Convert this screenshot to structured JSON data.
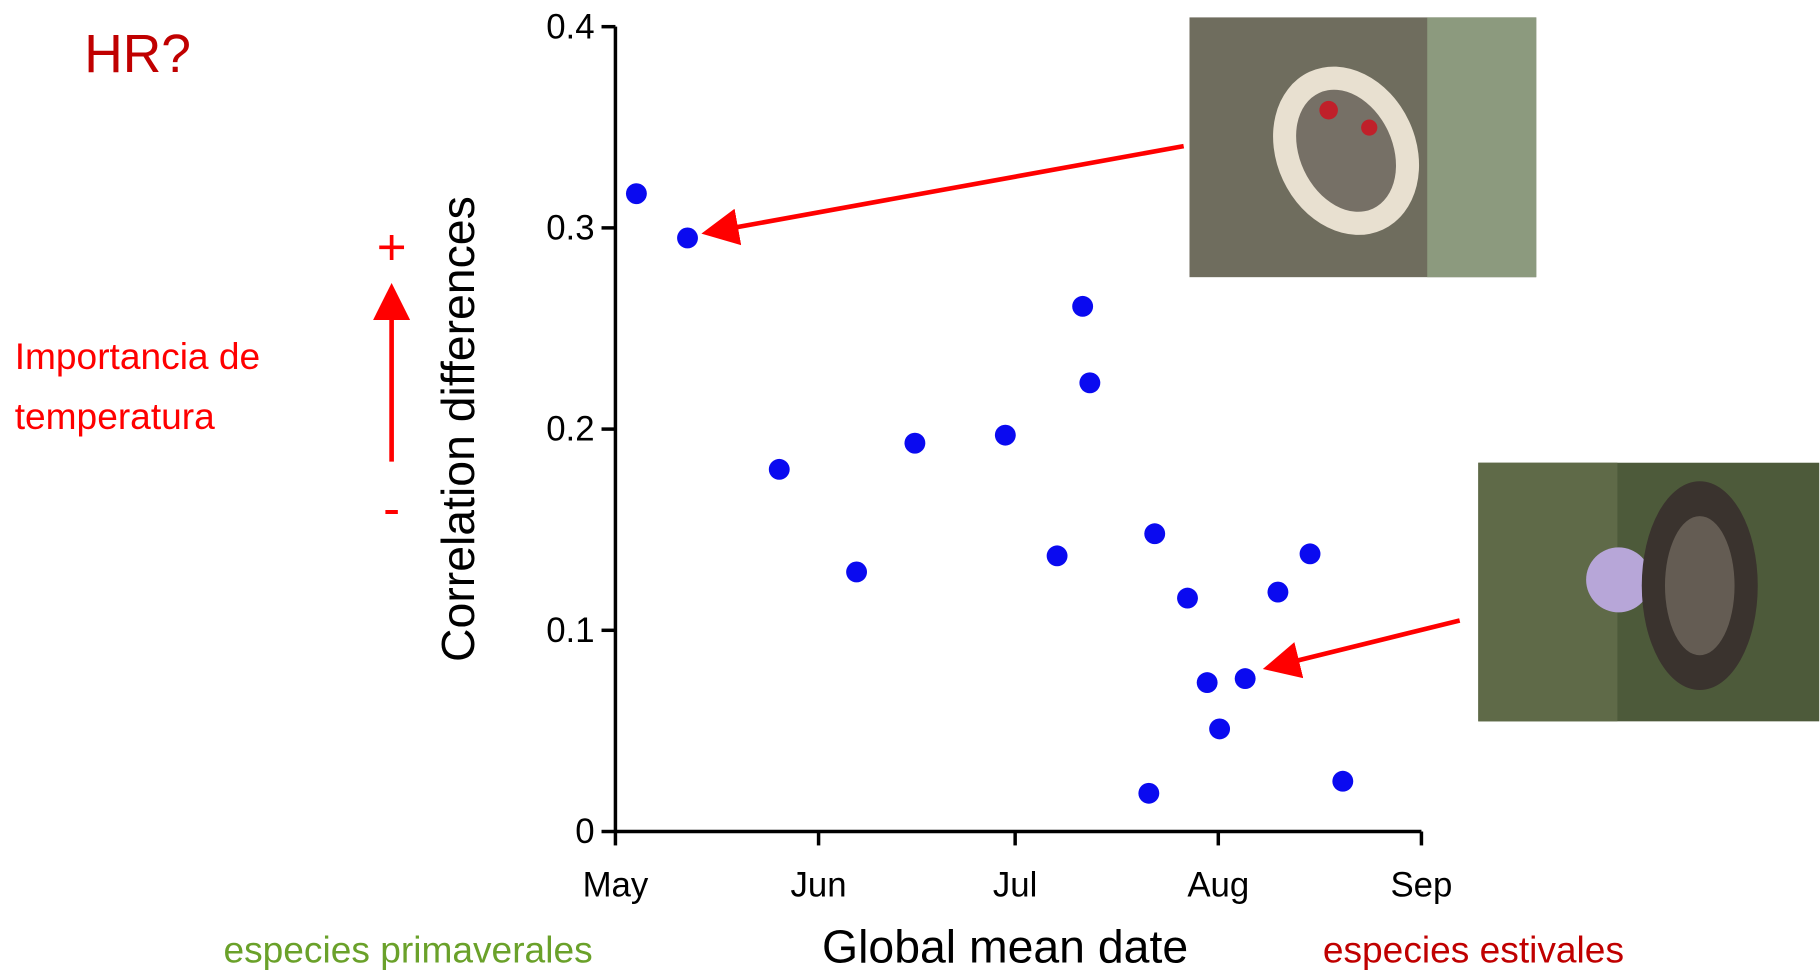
{
  "chart_data": {
    "type": "scatter",
    "corner_label": "HR?",
    "side_label_lines": [
      "Importancia de",
      "temperatura"
    ],
    "side_plus": "+",
    "side_minus": "-",
    "left_note": "especies primaverales",
    "right_note": "especies estivales",
    "x_label": "Global mean date",
    "y_label": "Correlation differences",
    "color": "#0a0af0",
    "xlim": [
      0,
      123
    ],
    "xticks": [
      {
        "value": 0,
        "label": "May"
      },
      {
        "value": 31,
        "label": "Jun"
      },
      {
        "value": 61,
        "label": "Jul"
      },
      {
        "value": 92,
        "label": "Aug"
      },
      {
        "value": 123,
        "label": "Sep"
      }
    ],
    "ylim": [
      0,
      0.4
    ],
    "yticks": [
      0,
      0.1,
      0.2,
      0.3,
      0.4
    ],
    "x": [
      3.2,
      11.0,
      25.0,
      36.8,
      45.7,
      59.5,
      67.4,
      71.3,
      72.4,
      81.4,
      82.3,
      87.3,
      90.3,
      92.2,
      96.1,
      101.1,
      106.0,
      111.0
    ],
    "values": [
      0.317,
      0.295,
      0.18,
      0.129,
      0.193,
      0.197,
      0.137,
      0.261,
      0.223,
      0.019,
      0.148,
      0.116,
      0.074,
      0.051,
      0.076,
      0.119,
      0.138,
      0.025
    ]
  }
}
